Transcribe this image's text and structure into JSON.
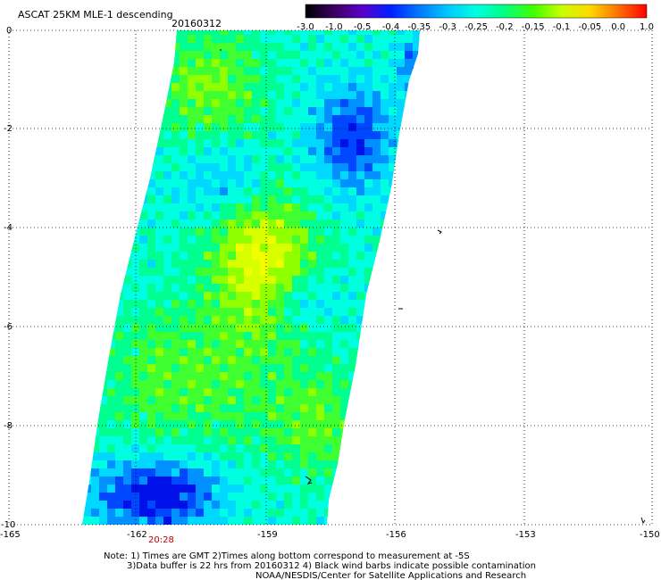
{
  "title": "ASCAT 25KM MLE-1 descending",
  "date": "20160312",
  "colorbar": {
    "labels": [
      "-3.0",
      "-1.0",
      "-0.5",
      "-0.4",
      "-0.35",
      "-0.3",
      "-0.25",
      "-0.2",
      "-0.15",
      "-0.1",
      "-0.05",
      "0.0",
      "1.0"
    ],
    "stops": [
      "#000000",
      "#3a0060",
      "#5a00c8",
      "#0020ff",
      "#0078ff",
      "#00c8ff",
      "#00ffe0",
      "#00ff80",
      "#40ff00",
      "#c8ff00",
      "#ffd800",
      "#ff7000",
      "#ff0000"
    ]
  },
  "axes": {
    "x_ticks": [
      "-165",
      "-162",
      "-159",
      "-156",
      "-153",
      "-150"
    ],
    "y_ticks": [
      "0",
      "-2",
      "-4",
      "-6",
      "-8",
      "-10"
    ]
  },
  "time_label": "20:28",
  "notes": {
    "line1": "Note: 1) Times are GMT 2)Times along bottom correspond to measurement at -5S",
    "line2": "3)Data buffer is 22 hrs from 20160312 4) Black wind barbs indicate possible contamination",
    "line3": "NOAA/NESDIS/Center for Satellite Applications and Research"
  }
}
